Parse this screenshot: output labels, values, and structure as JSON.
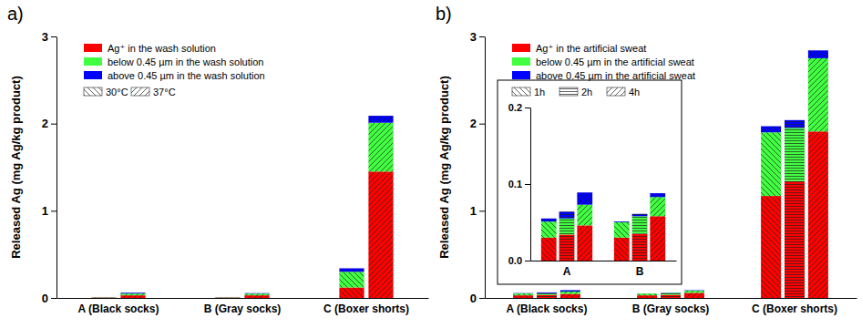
{
  "chart_data": [
    {
      "type": "bar",
      "title": "a)",
      "stacked": true,
      "ylabel": "Released Ag (mg Ag/kg product)",
      "categories": [
        "A (Black socks)",
        "B (Gray socks)",
        "C (Boxer shorts)"
      ],
      "groups": [
        "30°C",
        "37°C"
      ],
      "series": [
        {
          "name": "Ag⁺ in the wash solution",
          "color": "#ff0000",
          "values": [
            [
              0.005,
              0.03
            ],
            [
              0.005,
              0.03
            ],
            [
              0.12,
              1.45
            ]
          ]
        },
        {
          "name": "below 0.45 µm in the wash solution",
          "color": "#40ff40",
          "values": [
            [
              0.003,
              0.02
            ],
            [
              0.003,
              0.02
            ],
            [
              0.18,
              0.56
            ]
          ]
        },
        {
          "name": "above 0.45 µm in the wash solution",
          "color": "#0000ff",
          "values": [
            [
              0.001,
              0.01
            ],
            [
              0.001,
              0.005
            ],
            [
              0.04,
              0.08
            ]
          ]
        }
      ],
      "ylim": [
        0,
        3
      ],
      "yticks": [
        0,
        1,
        2,
        3
      ],
      "legend": "upper left"
    },
    {
      "type": "bar",
      "title": "b)",
      "stacked": true,
      "ylabel": "Released Ag (mg Ag/kg product)",
      "categories": [
        "A (Black socks)",
        "B (Gray socks)",
        "C (Boxer shorts)"
      ],
      "groups": [
        "1h",
        "2h",
        "4h"
      ],
      "series": [
        {
          "name": "Ag⁺ in the artificial sweat",
          "color": "#ff0000",
          "values": [
            [
              0.03,
              0.034,
              0.046
            ],
            [
              0.03,
              0.035,
              0.058
            ],
            [
              1.17,
              1.34,
              1.91
            ]
          ]
        },
        {
          "name": "below 0.45 µm in the artificial sweat",
          "color": "#40ff40",
          "values": [
            [
              0.021,
              0.021,
              0.027
            ],
            [
              0.02,
              0.023,
              0.025
            ],
            [
              0.73,
              0.61,
              0.84
            ]
          ]
        },
        {
          "name": "above 0.45 µm in the artificial sweat",
          "color": "#0000ff",
          "values": [
            [
              0.004,
              0.009,
              0.016
            ],
            [
              0.001,
              0.003,
              0.005
            ],
            [
              0.07,
              0.09,
              0.09
            ]
          ]
        }
      ],
      "ylim": [
        0,
        3
      ],
      "yticks": [
        0,
        1,
        2,
        3
      ],
      "legend": "upper left",
      "inset": {
        "categories": [
          "A",
          "B"
        ],
        "ylim": [
          0,
          0.2
        ],
        "yticks": [
          {
            "value": 0,
            "label": "0.0"
          },
          {
            "value": 0.1,
            "label": "0.1"
          },
          {
            "value": 0.2,
            "label": "0.2"
          }
        ]
      }
    }
  ]
}
